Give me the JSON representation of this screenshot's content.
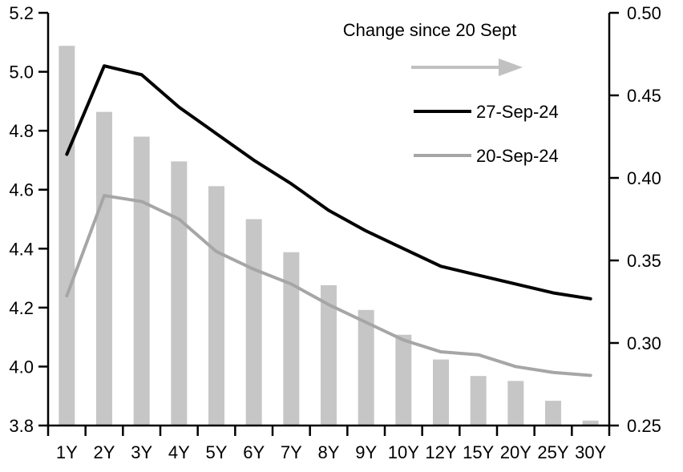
{
  "chart_data": {
    "type": "bar",
    "subtype": "combo-dual-axis-bar-and-lines",
    "title": "",
    "categories": [
      "1Y",
      "2Y",
      "3Y",
      "4Y",
      "5Y",
      "6Y",
      "7Y",
      "8Y",
      "9Y",
      "10Y",
      "12Y",
      "15Y",
      "20Y",
      "25Y",
      "30Y"
    ],
    "series": [
      {
        "name": "Change since 20 Sept",
        "type": "bar",
        "axis": "right",
        "color": "#c6c6c6",
        "values": [
          0.48,
          0.44,
          0.425,
          0.41,
          0.395,
          0.375,
          0.355,
          0.335,
          0.32,
          0.305,
          0.29,
          0.28,
          0.277,
          0.265,
          0.253
        ]
      },
      {
        "name": "27-Sep-24",
        "type": "line",
        "axis": "left",
        "color": "#000000",
        "values": [
          4.72,
          5.02,
          4.99,
          4.88,
          4.79,
          4.7,
          4.62,
          4.53,
          4.46,
          4.4,
          4.34,
          4.31,
          4.28,
          4.25,
          4.23
        ]
      },
      {
        "name": "20-Sep-24",
        "type": "line",
        "axis": "left",
        "color": "#a6a6a6",
        "values": [
          4.24,
          4.58,
          4.56,
          4.5,
          4.39,
          4.33,
          4.28,
          4.21,
          4.15,
          4.09,
          4.05,
          4.04,
          4.0,
          3.98,
          3.97
        ]
      }
    ],
    "left_axis": {
      "min": 3.8,
      "max": 5.2,
      "step": 0.2,
      "ticks": [
        "5.2",
        "5.0",
        "4.8",
        "4.6",
        "4.4",
        "4.2",
        "4.0",
        "3.8"
      ]
    },
    "right_axis": {
      "min": 0.25,
      "max": 0.5,
      "step": 0.05,
      "ticks": [
        "0.50",
        "0.45",
        "0.40",
        "0.35",
        "0.30",
        "0.25"
      ]
    },
    "legend": {
      "title": "Change since 20 Sept",
      "arrow_icon": "right-arrow",
      "arrow_color": "#c1c1c1",
      "entries": [
        "27-Sep-24",
        "20-Sep-24"
      ],
      "entry_colors": [
        "#000000",
        "#a6a6a6"
      ],
      "position": "top-right-inside"
    },
    "grid": false,
    "background": "#ffffff",
    "axis_color": "#000000"
  }
}
